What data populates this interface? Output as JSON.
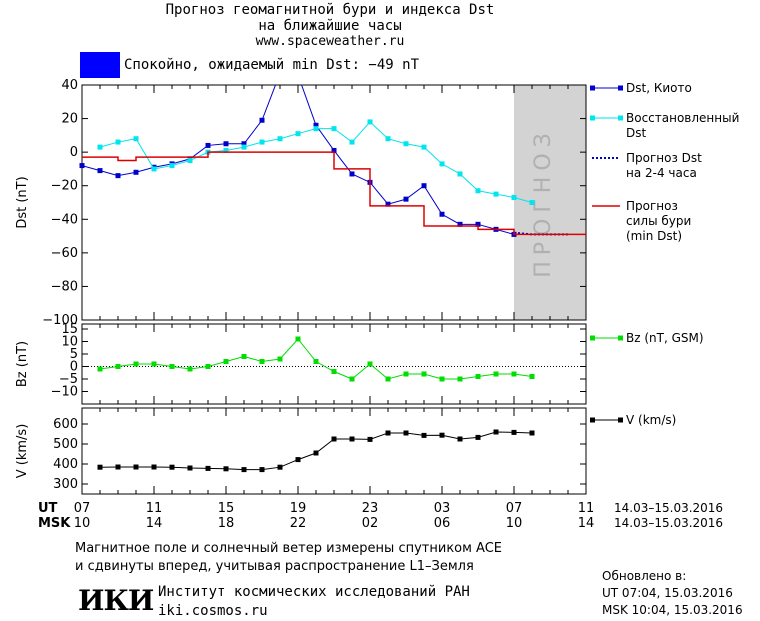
{
  "header": {
    "line1": "Прогноз геомагнитной бури и индекса Dst",
    "line2": "на ближайшие часы",
    "url": "www.spaceweather.ru"
  },
  "status": {
    "text": "Спокойно, ожидаемый min Dst: −49 nT",
    "color": "#0000ff"
  },
  "forecast_label": "ПРОГНОЗ",
  "footer": {
    "measured_line1": "Магнитное поле и солнечный ветер измерены спутником ACE",
    "measured_line2": "и сдвинуты вперед, учитывая распространение L1–Земля",
    "institute": "Институт космических исследований РАН",
    "institute_url": "iki.cosmos.ru",
    "logo": "ИКИ",
    "updated_label": "Обновлено в:",
    "updated_ut": "UT   07:04, 15.03.2016",
    "updated_msk": "MSK 10:04, 15.03.2016"
  },
  "time_axis": {
    "ut_label": "UT",
    "msk_label": "MSK",
    "ut_ticks": [
      "07",
      "11",
      "15",
      "19",
      "23",
      "03",
      "07",
      "11"
    ],
    "msk_ticks": [
      "10",
      "14",
      "18",
      "22",
      "02",
      "06",
      "10",
      "14"
    ],
    "range": "14.03–15.03.2016"
  },
  "chart_data": [
    {
      "type": "line",
      "ylabel": "Dst (nT)",
      "ylim": [
        -100,
        40
      ],
      "yticks": [
        40,
        20,
        0,
        -20,
        -40,
        -60,
        -80,
        -100
      ],
      "xlim": [
        0,
        28
      ],
      "forecast_span": [
        24,
        28
      ],
      "legend_position": "right",
      "series": [
        {
          "name": "Dst, Киото",
          "color": "#0000cc",
          "marker": "square",
          "x": [
            0,
            1,
            2,
            3,
            4,
            5,
            6,
            7,
            8,
            9,
            10,
            11,
            12,
            13,
            14,
            15,
            16,
            17,
            18,
            19,
            20,
            21,
            22,
            23,
            24
          ],
          "y": [
            -8,
            -11,
            -14,
            -12,
            -9,
            -7,
            -4,
            4,
            5,
            5,
            19,
            47,
            46,
            16,
            1,
            -13,
            -18,
            -31,
            -28,
            -20,
            -37,
            -43,
            -43,
            -46,
            -49
          ]
        },
        {
          "name": "Восстановленный Dst",
          "color": "#00e5ee",
          "marker": "square",
          "x": [
            1,
            2,
            3,
            4,
            5,
            6,
            7,
            8,
            9,
            10,
            11,
            12,
            13,
            14,
            15,
            16,
            17,
            18,
            19,
            20,
            21,
            22,
            23,
            24,
            25
          ],
          "y": [
            3,
            6,
            8,
            -10,
            -8,
            -5,
            0,
            1,
            3,
            6,
            8,
            11,
            14,
            14,
            6,
            18,
            8,
            5,
            3,
            -7,
            -13,
            -23,
            -25,
            -27,
            -30
          ]
        },
        {
          "name": "Прогноз Dst на 2-4 часа",
          "color": "#0000cc",
          "dashed": true,
          "x": [
            24,
            25,
            26,
            27
          ],
          "y": [
            -48,
            -49,
            -49,
            -49
          ]
        },
        {
          "name": "Прогноз силы бури (min Dst)",
          "color": "#dd0000",
          "step": true,
          "x": [
            0,
            1,
            2,
            3,
            4,
            5,
            6,
            7,
            8,
            9,
            10,
            11,
            12,
            13,
            14,
            15,
            16,
            17,
            18,
            19,
            20,
            21,
            22,
            23,
            24,
            25,
            26,
            27,
            28
          ],
          "y": [
            -3,
            -3,
            -5,
            -3,
            -3,
            -3,
            -3,
            0,
            0,
            0,
            0,
            0,
            0,
            0,
            -10,
            -10,
            -32,
            -32,
            -32,
            -44,
            -44,
            -44,
            -46,
            -46,
            -49,
            -49,
            -49,
            -49,
            -49
          ]
        }
      ],
      "legend": [
        {
          "label": "Dst, Киото",
          "color": "#0000cc",
          "style": "marker"
        },
        {
          "label": "Восстановленный Dst",
          "color": "#00e5ee",
          "style": "marker"
        },
        {
          "label": "Прогноз Dst на 2-4 часа",
          "color": "#0000cc",
          "style": "dotted"
        },
        {
          "label": "Прогноз силы бури (min Dst)",
          "color": "#dd0000",
          "style": "line"
        }
      ]
    },
    {
      "type": "line",
      "ylabel": "Bz (nT)",
      "ylim": [
        -15,
        17
      ],
      "yticks": [
        15,
        10,
        5,
        0,
        -5,
        -10
      ],
      "xlim": [
        0,
        28
      ],
      "legend_position": "right",
      "series": [
        {
          "name": "Bz (nT, GSM)",
          "color": "#00dd00",
          "marker": "square",
          "x": [
            1,
            2,
            3,
            4,
            5,
            6,
            7,
            8,
            9,
            10,
            11,
            12,
            13,
            14,
            15,
            16,
            17,
            18,
            19,
            20,
            21,
            22,
            23,
            24,
            25
          ],
          "y": [
            -1,
            0,
            1,
            1,
            0,
            -1,
            0,
            2,
            4,
            2,
            3,
            11,
            2,
            -2,
            -5,
            1,
            -5,
            -3,
            -3,
            -5,
            -5,
            -4,
            -3,
            -3,
            -4
          ]
        }
      ],
      "legend": [
        {
          "label": "Bz (nT, GSM)",
          "color": "#00dd00",
          "style": "marker"
        }
      ]
    },
    {
      "type": "line",
      "ylabel": "V (km/s)",
      "ylim": [
        250,
        680
      ],
      "yticks": [
        600,
        500,
        400,
        300
      ],
      "xlim": [
        0,
        28
      ],
      "legend_position": "right",
      "series": [
        {
          "name": "V (km/s)",
          "color": "#000000",
          "marker": "square",
          "x": [
            1,
            2,
            3,
            4,
            5,
            6,
            7,
            8,
            9,
            10,
            11,
            12,
            13,
            14,
            15,
            16,
            17,
            18,
            19,
            20,
            21,
            22,
            23,
            24,
            25
          ],
          "y": [
            384,
            385,
            385,
            385,
            384,
            380,
            378,
            376,
            372,
            372,
            384,
            422,
            455,
            525,
            525,
            523,
            555,
            555,
            543,
            544,
            525,
            533,
            560,
            558,
            555
          ]
        }
      ],
      "legend": [
        {
          "label": "V (km/s)",
          "color": "#000000",
          "style": "marker"
        }
      ]
    }
  ]
}
